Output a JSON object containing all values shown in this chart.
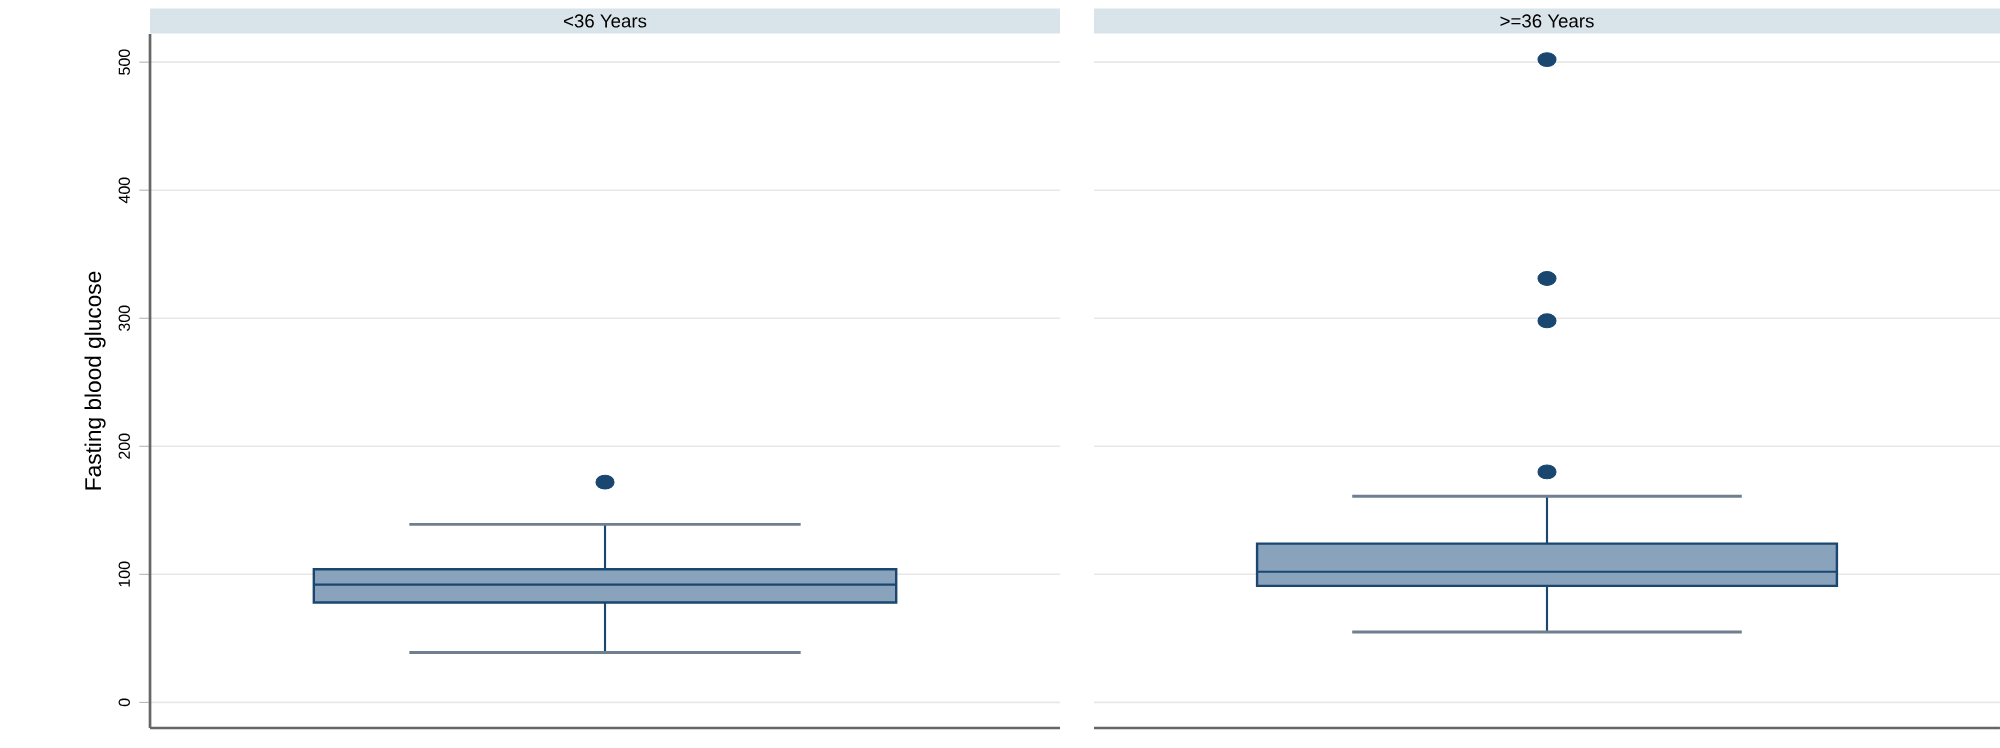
{
  "chart_data": {
    "type": "box",
    "ylabel": "Fasting blood glucose",
    "categories": [
      "<36 Years",
      ">=36 Years"
    ],
    "color": "#8aa3bd",
    "boxes": [
      {
        "low": 39,
        "q1": 78,
        "median": 92,
        "q3": 104,
        "high": 139,
        "outliers": [
          172
        ]
      },
      {
        "low": 55,
        "q1": 91,
        "median": 102,
        "q3": 124,
        "high": 161,
        "outliers": [
          180,
          298,
          331,
          502
        ]
      }
    ],
    "ylim": [
      -20,
      522
    ],
    "yticks": [
      0,
      100,
      200,
      300,
      400,
      500
    ],
    "grid": "y"
  }
}
